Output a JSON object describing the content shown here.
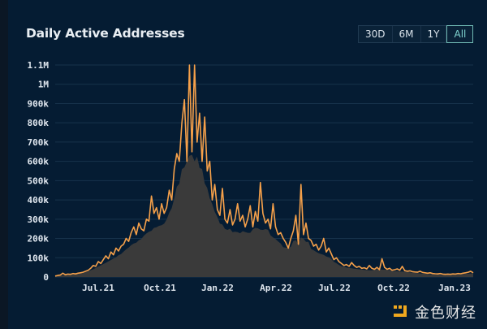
{
  "header": {
    "title": "Daily Active Addresses",
    "range_buttons": [
      {
        "label": "30D",
        "active": false
      },
      {
        "label": "6M",
        "active": false
      },
      {
        "label": "1Y",
        "active": false
      },
      {
        "label": "All",
        "active": true
      }
    ]
  },
  "watermark": {
    "text": "金色财经",
    "logo_color": "#f0a81e"
  },
  "colors": {
    "background": "#051c33",
    "line": "#f5a04a",
    "area": "#3a3a3a",
    "grid": "#17324b",
    "accent": "#7fd3cf"
  },
  "chart_data": {
    "type": "area",
    "title": "Daily Active Addresses",
    "xlabel": "",
    "ylabel": "",
    "ylim": [
      0,
      1100000
    ],
    "grid": true,
    "legend": "none",
    "y_ticks": [
      "0",
      "100k",
      "200k",
      "300k",
      "400k",
      "500k",
      "600k",
      "700k",
      "800k",
      "900k",
      "1M",
      "1.1M"
    ],
    "x_ticks": [
      "Jul.21",
      "Oct.21",
      "Jan.22",
      "Apr.22",
      "Jul.22",
      "Oct.22",
      "Jan.23"
    ],
    "x_range": [
      "Apr.21",
      "Jan.23"
    ],
    "series": [
      {
        "name": "Daily Active Addresses",
        "values": [
          5000,
          8000,
          10000,
          20000,
          12000,
          15000,
          14000,
          18000,
          16000,
          20000,
          22000,
          25000,
          30000,
          35000,
          45000,
          60000,
          55000,
          80000,
          70000,
          90000,
          110000,
          95000,
          130000,
          115000,
          150000,
          135000,
          160000,
          170000,
          200000,
          185000,
          230000,
          260000,
          220000,
          280000,
          250000,
          240000,
          300000,
          290000,
          420000,
          330000,
          360000,
          300000,
          380000,
          330000,
          360000,
          450000,
          400000,
          560000,
          640000,
          600000,
          800000,
          920000,
          600000,
          1100000,
          650000,
          1100000,
          700000,
          850000,
          600000,
          830000,
          550000,
          600000,
          400000,
          480000,
          350000,
          320000,
          460000,
          300000,
          280000,
          350000,
          270000,
          300000,
          380000,
          290000,
          320000,
          260000,
          300000,
          370000,
          260000,
          340000,
          290000,
          490000,
          330000,
          280000,
          300000,
          250000,
          380000,
          260000,
          220000,
          230000,
          200000,
          180000,
          150000,
          200000,
          240000,
          320000,
          170000,
          480000,
          220000,
          280000,
          200000,
          190000,
          160000,
          170000,
          140000,
          160000,
          200000,
          130000,
          150000,
          120000,
          90000,
          100000,
          80000,
          70000,
          60000,
          65000,
          55000,
          75000,
          60000,
          50000,
          55000,
          45000,
          48000,
          42000,
          60000,
          45000,
          40000,
          50000,
          38000,
          95000,
          50000,
          40000,
          45000,
          35000,
          38000,
          42000,
          35000,
          55000,
          33000,
          30000,
          32000,
          28000,
          26000,
          25000,
          30000,
          24000,
          22000,
          20000,
          22000,
          18000,
          17000,
          16000,
          18000,
          15000,
          14000,
          15000,
          14000,
          16000,
          15000,
          18000,
          17000,
          20000,
          22000,
          25000,
          30000,
          22000
        ]
      }
    ],
    "annotations": []
  }
}
